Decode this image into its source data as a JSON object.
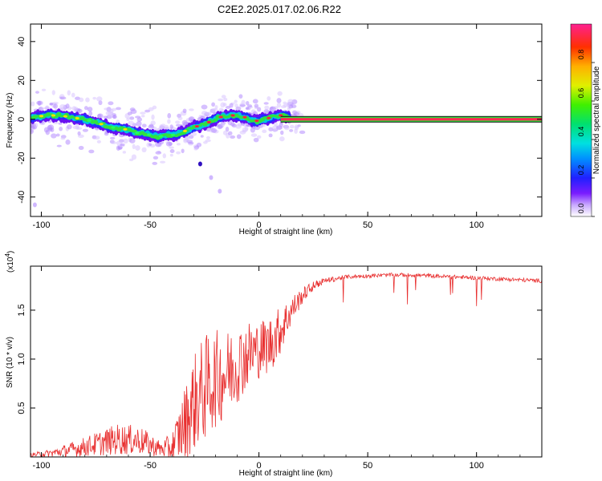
{
  "title": "C2E2.2025.017.02.06.R22",
  "chart_data": [
    {
      "type": "heatmap",
      "xlabel": "Height of straight line (km)",
      "ylabel": "Frequency (Hz)",
      "xlim": [
        -105,
        130
      ],
      "ylim": [
        -50,
        49
      ],
      "xticks": [
        -100,
        -50,
        0,
        50,
        100
      ],
      "xtick_labels": [
        "-100",
        "-50",
        "0",
        "50",
        "100"
      ],
      "yticks": [
        -40,
        -20,
        0,
        20,
        40
      ],
      "ytick_labels": [
        "-40",
        "-20",
        "0",
        "20",
        "40"
      ],
      "colorbar": {
        "label": "Normalized spectral amplitude",
        "range": [
          0,
          1
        ],
        "ticks": [
          0,
          0.2,
          0.4,
          0.6,
          0.8
        ],
        "tick_labels": [
          "0.0",
          "0.2",
          "0.4",
          "0.6",
          "0.8"
        ]
      },
      "ridge": {
        "x": [
          -104,
          -98,
          -92,
          -86,
          -80,
          -74,
          -68,
          -62,
          -56,
          -50,
          -46,
          -42,
          -38,
          -34,
          -30,
          -26,
          -22,
          -18,
          -14,
          -10,
          -6,
          -2,
          2,
          6,
          10,
          14,
          20
        ],
        "freq": [
          1,
          2,
          2,
          1,
          0,
          -2,
          -4,
          -5,
          -7,
          -8,
          -9,
          -8,
          -8,
          -6,
          -4,
          -3,
          -1,
          1,
          2,
          2,
          1,
          -1,
          0,
          1,
          2,
          1,
          0.5
        ]
      },
      "constant_line": {
        "x_start": 10,
        "x_end": 130,
        "freq": 0
      },
      "outliers": [
        {
          "x": -27,
          "freq": -23
        },
        {
          "x": -22,
          "freq": -30
        },
        {
          "x": -18,
          "freq": -37
        },
        {
          "x": -103,
          "freq": -44
        }
      ]
    },
    {
      "type": "line",
      "xlabel": "Height of straight line (km)",
      "ylabel": "SNR (10 * v/v)",
      "multiplier_label": "(x10",
      "multiplier_exponent": "4",
      "multiplier_close": ")",
      "xlim": [
        -105,
        130
      ],
      "ylim": [
        0,
        1.95
      ],
      "xticks": [
        -100,
        -50,
        0,
        50,
        100
      ],
      "xtick_labels": [
        "-100",
        "-50",
        "0",
        "50",
        "100"
      ],
      "yticks": [
        0.5,
        1.0,
        1.5
      ],
      "ytick_labels": [
        "0.5",
        "1.0",
        "1.5"
      ],
      "series": [
        {
          "name": "SNR",
          "color": "#e83030",
          "envelope_x": [
            -105,
            -95,
            -85,
            -75,
            -65,
            -55,
            -45,
            -40,
            -35,
            -30,
            -25,
            -20,
            -15,
            -10,
            -5,
            0,
            5,
            10,
            15,
            20,
            25,
            30,
            40,
            50,
            60,
            70,
            80,
            90,
            100,
            110,
            120,
            130
          ],
          "base": [
            0.02,
            0.04,
            0.08,
            0.13,
            0.18,
            0.17,
            0.08,
            0.1,
            0.3,
            0.55,
            0.7,
            0.8,
            0.85,
            0.95,
            1.05,
            1.1,
            1.15,
            1.3,
            1.5,
            1.65,
            1.75,
            1.8,
            1.84,
            1.85,
            1.86,
            1.86,
            1.85,
            1.84,
            1.83,
            1.82,
            1.81,
            1.8
          ],
          "amplitude": [
            0.02,
            0.04,
            0.08,
            0.12,
            0.16,
            0.15,
            0.08,
            0.15,
            0.35,
            0.5,
            0.55,
            0.5,
            0.45,
            0.4,
            0.35,
            0.3,
            0.3,
            0.25,
            0.15,
            0.08,
            0.05,
            0.03,
            0.02,
            0.02,
            0.02,
            0.02,
            0.02,
            0.02,
            0.02,
            0.02,
            0.02,
            0.02
          ]
        }
      ]
    }
  ]
}
